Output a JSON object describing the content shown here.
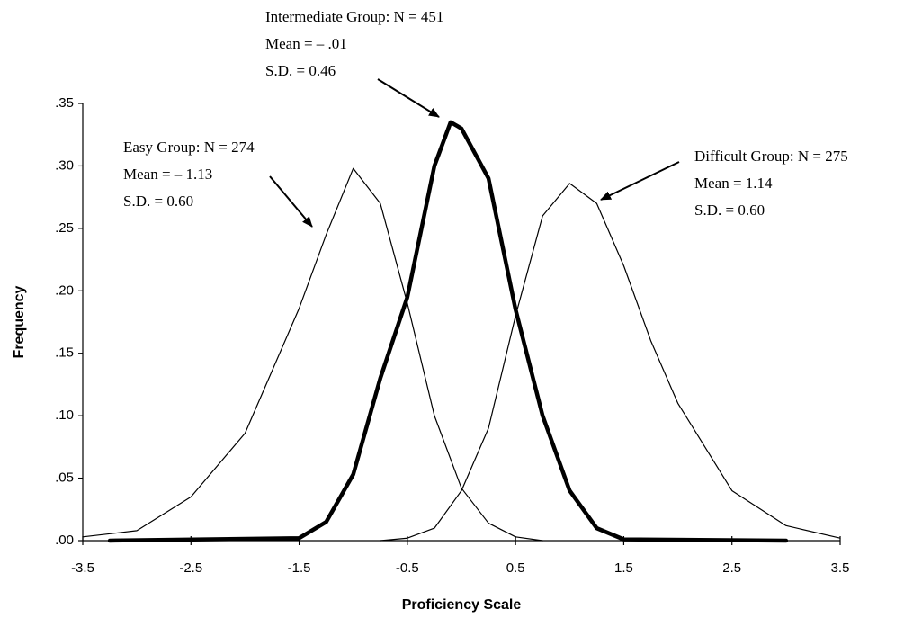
{
  "chart_data": {
    "type": "line",
    "xlabel": "Proficiency Scale",
    "ylabel": "Frequency",
    "xlim": [
      -3.5,
      3.5
    ],
    "ylim": [
      0,
      0.35
    ],
    "xticks": [
      -3.5,
      -2.5,
      -1.5,
      -0.5,
      0.5,
      1.5,
      2.5,
      3.5
    ],
    "yticks": [
      {
        "value": 0,
        "label": ".00"
      },
      {
        "value": 0.05,
        "label": ".05"
      },
      {
        "value": 0.1,
        "label": ".10"
      },
      {
        "value": 0.15,
        "label": ".15"
      },
      {
        "value": 0.2,
        "label": ".20"
      },
      {
        "value": 0.25,
        "label": ".25"
      },
      {
        "value": 0.3,
        "label": ".30"
      },
      {
        "value": 0.35,
        "label": ".35"
      }
    ],
    "series": [
      {
        "color": "#000000",
        "line_width": 1.2,
        "x": [
          -3.5,
          -3.0,
          -2.5,
          -2.0,
          -1.5,
          -1.25,
          -1.0,
          -0.75,
          -0.5,
          -0.25,
          0.0,
          0.25,
          0.5,
          0.75
        ],
        "values": [
          0.003,
          0.008,
          0.035,
          0.086,
          0.186,
          0.245,
          0.298,
          0.27,
          0.19,
          0.1,
          0.042,
          0.014,
          0.003,
          0.0
        ]
      },
      {
        "color": "#000000",
        "line_width": 4.5,
        "x": [
          -3.25,
          -1.5,
          -1.25,
          -1.0,
          -0.75,
          -0.5,
          -0.25,
          -0.1,
          0.0,
          0.25,
          0.5,
          0.75,
          1.0,
          1.25,
          1.5,
          3.0
        ],
        "values": [
          0.0,
          0.002,
          0.015,
          0.053,
          0.13,
          0.195,
          0.3,
          0.335,
          0.33,
          0.29,
          0.185,
          0.1,
          0.04,
          0.01,
          0.001,
          0.0
        ]
      },
      {
        "color": "#000000",
        "line_width": 1.2,
        "x": [
          -0.75,
          -0.5,
          -0.25,
          0.0,
          0.25,
          0.5,
          0.75,
          1.0,
          1.25,
          1.5,
          1.75,
          2.0,
          2.5,
          3.0,
          3.5
        ],
        "values": [
          0.0,
          0.002,
          0.01,
          0.04,
          0.09,
          0.18,
          0.26,
          0.286,
          0.27,
          0.22,
          0.16,
          0.11,
          0.04,
          0.012,
          0.002
        ]
      }
    ],
    "annotations": [
      [
        "Easy Group: N = 274",
        "Mean = – 1.13",
        "S.D. = 0.60"
      ],
      [
        "Intermediate Group: N = 451",
        "Mean = – .01",
        "S.D. = 0.46"
      ],
      [
        "Difficult Group: N = 275",
        "Mean = 1.14",
        "S.D. = 0.60"
      ]
    ]
  }
}
